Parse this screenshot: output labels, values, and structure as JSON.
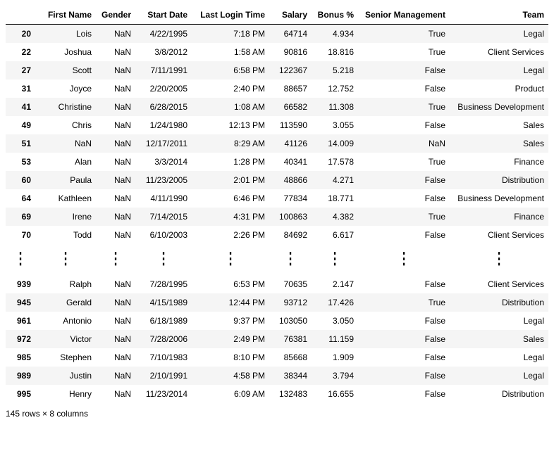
{
  "columns": [
    "First Name",
    "Gender",
    "Start Date",
    "Last Login Time",
    "Salary",
    "Bonus %",
    "Senior Management",
    "Team"
  ],
  "top_rows": [
    {
      "idx": "20",
      "cells": [
        "Lois",
        "NaN",
        "4/22/1995",
        "7:18 PM",
        "64714",
        "4.934",
        "True",
        "Legal"
      ]
    },
    {
      "idx": "22",
      "cells": [
        "Joshua",
        "NaN",
        "3/8/2012",
        "1:58 AM",
        "90816",
        "18.816",
        "True",
        "Client Services"
      ]
    },
    {
      "idx": "27",
      "cells": [
        "Scott",
        "NaN",
        "7/11/1991",
        "6:58 PM",
        "122367",
        "5.218",
        "False",
        "Legal"
      ]
    },
    {
      "idx": "31",
      "cells": [
        "Joyce",
        "NaN",
        "2/20/2005",
        "2:40 PM",
        "88657",
        "12.752",
        "False",
        "Product"
      ]
    },
    {
      "idx": "41",
      "cells": [
        "Christine",
        "NaN",
        "6/28/2015",
        "1:08 AM",
        "66582",
        "11.308",
        "True",
        "Business Development"
      ]
    },
    {
      "idx": "49",
      "cells": [
        "Chris",
        "NaN",
        "1/24/1980",
        "12:13 PM",
        "113590",
        "3.055",
        "False",
        "Sales"
      ]
    },
    {
      "idx": "51",
      "cells": [
        "NaN",
        "NaN",
        "12/17/2011",
        "8:29 AM",
        "41126",
        "14.009",
        "NaN",
        "Sales"
      ]
    },
    {
      "idx": "53",
      "cells": [
        "Alan",
        "NaN",
        "3/3/2014",
        "1:28 PM",
        "40341",
        "17.578",
        "True",
        "Finance"
      ]
    },
    {
      "idx": "60",
      "cells": [
        "Paula",
        "NaN",
        "11/23/2005",
        "2:01 PM",
        "48866",
        "4.271",
        "False",
        "Distribution"
      ]
    },
    {
      "idx": "64",
      "cells": [
        "Kathleen",
        "NaN",
        "4/11/1990",
        "6:46 PM",
        "77834",
        "18.771",
        "False",
        "Business Development"
      ]
    },
    {
      "idx": "69",
      "cells": [
        "Irene",
        "NaN",
        "7/14/2015",
        "4:31 PM",
        "100863",
        "4.382",
        "True",
        "Finance"
      ]
    },
    {
      "idx": "70",
      "cells": [
        "Todd",
        "NaN",
        "6/10/2003",
        "2:26 PM",
        "84692",
        "6.617",
        "False",
        "Client Services"
      ]
    }
  ],
  "bottom_rows": [
    {
      "idx": "939",
      "cells": [
        "Ralph",
        "NaN",
        "7/28/1995",
        "6:53 PM",
        "70635",
        "2.147",
        "False",
        "Client Services"
      ]
    },
    {
      "idx": "945",
      "cells": [
        "Gerald",
        "NaN",
        "4/15/1989",
        "12:44 PM",
        "93712",
        "17.426",
        "True",
        "Distribution"
      ]
    },
    {
      "idx": "961",
      "cells": [
        "Antonio",
        "NaN",
        "6/18/1989",
        "9:37 PM",
        "103050",
        "3.050",
        "False",
        "Legal"
      ]
    },
    {
      "idx": "972",
      "cells": [
        "Victor",
        "NaN",
        "7/28/2006",
        "2:49 PM",
        "76381",
        "11.159",
        "False",
        "Sales"
      ]
    },
    {
      "idx": "985",
      "cells": [
        "Stephen",
        "NaN",
        "7/10/1983",
        "8:10 PM",
        "85668",
        "1.909",
        "False",
        "Legal"
      ]
    },
    {
      "idx": "989",
      "cells": [
        "Justin",
        "NaN",
        "2/10/1991",
        "4:58 PM",
        "38344",
        "3.794",
        "False",
        "Legal"
      ]
    },
    {
      "idx": "995",
      "cells": [
        "Henry",
        "NaN",
        "11/23/2014",
        "6:09 AM",
        "132483",
        "16.655",
        "False",
        "Distribution"
      ]
    }
  ],
  "summary": "145 rows × 8 columns"
}
